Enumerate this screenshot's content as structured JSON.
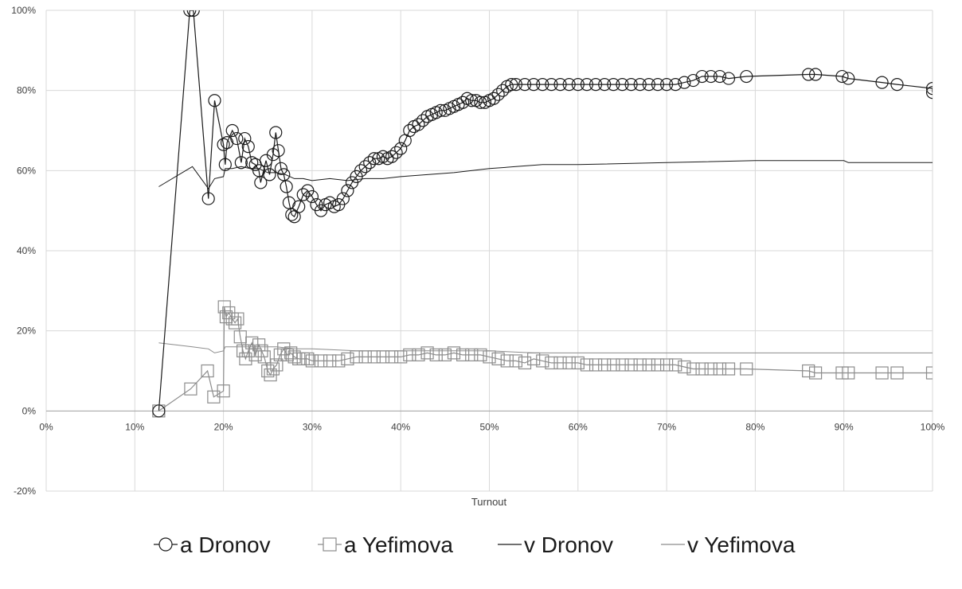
{
  "chart_data": {
    "type": "line",
    "xlabel": "Turnout",
    "ylabel": "",
    "xlim": [
      0,
      100
    ],
    "ylim": [
      -20,
      100
    ],
    "x_ticks": [
      "0%",
      "10%",
      "20%",
      "30%",
      "40%",
      "50%",
      "60%",
      "70%",
      "80%",
      "90%",
      "100%"
    ],
    "y_ticks": [
      "-20%",
      "0%",
      "20%",
      "40%",
      "60%",
      "80%",
      "100%"
    ],
    "grid": true,
    "legend_position": "bottom",
    "colors": {
      "dark": "#1a1a1a",
      "gray": "#8c8c8c",
      "grid": "#d9d9d9"
    },
    "series": [
      {
        "name": "a Dronov",
        "marker": "circle",
        "color": "#1a1a1a",
        "points": [
          [
            12.7,
            0
          ],
          [
            16.2,
            100
          ],
          [
            16.6,
            100
          ],
          [
            18.3,
            53
          ],
          [
            19.0,
            77.5
          ],
          [
            20.0,
            66.5
          ],
          [
            20.2,
            61.5
          ],
          [
            20.4,
            67
          ],
          [
            21.0,
            70
          ],
          [
            21.5,
            68
          ],
          [
            22.0,
            62
          ],
          [
            22.4,
            68
          ],
          [
            22.8,
            66
          ],
          [
            23.2,
            62
          ],
          [
            23.6,
            61.5
          ],
          [
            24.0,
            60
          ],
          [
            24.2,
            57
          ],
          [
            24.8,
            62.5
          ],
          [
            25.2,
            59
          ],
          [
            25.6,
            64
          ],
          [
            25.9,
            69.5
          ],
          [
            26.2,
            65
          ],
          [
            26.5,
            60.5
          ],
          [
            26.8,
            59
          ],
          [
            27.1,
            56
          ],
          [
            27.4,
            52
          ],
          [
            27.7,
            49
          ],
          [
            28.0,
            48.5
          ],
          [
            28.5,
            51
          ],
          [
            29.0,
            54
          ],
          [
            29.5,
            55
          ],
          [
            30.0,
            53.5
          ],
          [
            30.5,
            51.5
          ],
          [
            31.0,
            50
          ],
          [
            31.5,
            51.5
          ],
          [
            32.0,
            52
          ],
          [
            32.5,
            51
          ],
          [
            33.0,
            51.5
          ],
          [
            33.5,
            53
          ],
          [
            34.0,
            55
          ],
          [
            34.5,
            57
          ],
          [
            35.0,
            58.5
          ],
          [
            35.5,
            60
          ],
          [
            36.0,
            61
          ],
          [
            36.5,
            62
          ],
          [
            37.0,
            63
          ],
          [
            37.5,
            63
          ],
          [
            38.0,
            63.5
          ],
          [
            38.5,
            63
          ],
          [
            39.0,
            63.5
          ],
          [
            39.5,
            64.5
          ],
          [
            40.0,
            65.5
          ],
          [
            40.5,
            67.5
          ],
          [
            41.0,
            70
          ],
          [
            41.5,
            71
          ],
          [
            42.0,
            71.5
          ],
          [
            42.5,
            72.5
          ],
          [
            43.0,
            73.5
          ],
          [
            43.5,
            74
          ],
          [
            44.0,
            74.5
          ],
          [
            44.5,
            75
          ],
          [
            45.0,
            75
          ],
          [
            45.5,
            75.5
          ],
          [
            46.0,
            76
          ],
          [
            46.5,
            76.5
          ],
          [
            47.0,
            77
          ],
          [
            47.5,
            78
          ],
          [
            48.0,
            77.5
          ],
          [
            48.5,
            77.5
          ],
          [
            49.0,
            77
          ],
          [
            49.5,
            77
          ],
          [
            50.0,
            77.5
          ],
          [
            50.5,
            78
          ],
          [
            51.0,
            79
          ],
          [
            51.5,
            80
          ],
          [
            52.0,
            81
          ],
          [
            52.5,
            81.5
          ],
          [
            53.0,
            81.5
          ],
          [
            54.0,
            81.5
          ],
          [
            55.0,
            81.5
          ],
          [
            56.0,
            81.5
          ],
          [
            57.0,
            81.5
          ],
          [
            58.0,
            81.5
          ],
          [
            59.0,
            81.5
          ],
          [
            60.0,
            81.5
          ],
          [
            61.0,
            81.5
          ],
          [
            62.0,
            81.5
          ],
          [
            63.0,
            81.5
          ],
          [
            64.0,
            81.5
          ],
          [
            65.0,
            81.5
          ],
          [
            66.0,
            81.5
          ],
          [
            67.0,
            81.5
          ],
          [
            68.0,
            81.5
          ],
          [
            69.0,
            81.5
          ],
          [
            70.0,
            81.5
          ],
          [
            71.0,
            81.5
          ],
          [
            72.0,
            82
          ],
          [
            73.0,
            82.5
          ],
          [
            74.0,
            83.5
          ],
          [
            75.0,
            83.5
          ],
          [
            76.0,
            83.5
          ],
          [
            77.0,
            83
          ],
          [
            79.0,
            83.5
          ],
          [
            86.0,
            84
          ],
          [
            86.8,
            84
          ],
          [
            89.8,
            83.5
          ],
          [
            90.5,
            83
          ],
          [
            94.3,
            82
          ],
          [
            96.0,
            81.5
          ],
          [
            100.0,
            80.5
          ],
          [
            100.0,
            79.5
          ]
        ]
      },
      {
        "name": "a Yefimova",
        "marker": "square",
        "color": "#8c8c8c",
        "points": [
          [
            12.7,
            0
          ],
          [
            16.3,
            5.5
          ],
          [
            18.2,
            10
          ],
          [
            18.9,
            3.5
          ],
          [
            20.0,
            5
          ],
          [
            20.1,
            26
          ],
          [
            20.3,
            23.5
          ],
          [
            20.6,
            24.5
          ],
          [
            21.0,
            23
          ],
          [
            21.3,
            22
          ],
          [
            21.6,
            23
          ],
          [
            21.9,
            18.5
          ],
          [
            22.2,
            15
          ],
          [
            22.5,
            13
          ],
          [
            22.8,
            15
          ],
          [
            23.2,
            17
          ],
          [
            23.6,
            14
          ],
          [
            24.0,
            16.5
          ],
          [
            24.3,
            15
          ],
          [
            24.6,
            13.5
          ],
          [
            25.0,
            10
          ],
          [
            25.3,
            9
          ],
          [
            25.6,
            10.5
          ],
          [
            26.0,
            11.5
          ],
          [
            26.4,
            14
          ],
          [
            26.8,
            15.5
          ],
          [
            27.2,
            14
          ],
          [
            27.6,
            14.5
          ],
          [
            28.0,
            13.5
          ],
          [
            28.5,
            13
          ],
          [
            29.0,
            13
          ],
          [
            29.5,
            13
          ],
          [
            30.0,
            12.5
          ],
          [
            31.0,
            12.5
          ],
          [
            32.0,
            12.5
          ],
          [
            33.0,
            12.5
          ],
          [
            34.0,
            13
          ],
          [
            35.0,
            13.5
          ],
          [
            36.0,
            13.5
          ],
          [
            37.0,
            13.5
          ],
          [
            38.0,
            13.5
          ],
          [
            39.0,
            13.5
          ],
          [
            40.0,
            13.5
          ],
          [
            41.0,
            14
          ],
          [
            42.0,
            14
          ],
          [
            43.0,
            14.5
          ],
          [
            44.0,
            14
          ],
          [
            45.0,
            14
          ],
          [
            46.0,
            14.5
          ],
          [
            47.0,
            14
          ],
          [
            48.0,
            14
          ],
          [
            49.0,
            14
          ],
          [
            50.0,
            13.5
          ],
          [
            51.0,
            13
          ],
          [
            52.0,
            12.5
          ],
          [
            53.0,
            12.5
          ],
          [
            54.0,
            12
          ],
          [
            55.0,
            13
          ],
          [
            56.0,
            12.5
          ],
          [
            57.0,
            12
          ],
          [
            58.0,
            12
          ],
          [
            59.0,
            12
          ],
          [
            60.0,
            12
          ],
          [
            61.0,
            11.5
          ],
          [
            62.0,
            11.5
          ],
          [
            63.0,
            11.5
          ],
          [
            64.0,
            11.5
          ],
          [
            65.0,
            11.5
          ],
          [
            66.0,
            11.5
          ],
          [
            67.0,
            11.5
          ],
          [
            68.0,
            11.5
          ],
          [
            69.0,
            11.5
          ],
          [
            70.0,
            11.5
          ],
          [
            71.0,
            11.5
          ],
          [
            72.0,
            11
          ],
          [
            73.0,
            10.5
          ],
          [
            74.0,
            10.5
          ],
          [
            75.0,
            10.5
          ],
          [
            76.0,
            10.5
          ],
          [
            77.0,
            10.5
          ],
          [
            79.0,
            10.5
          ],
          [
            86.0,
            10
          ],
          [
            86.8,
            9.5
          ],
          [
            89.8,
            9.5
          ],
          [
            90.5,
            9.5
          ],
          [
            94.3,
            9.5
          ],
          [
            96.0,
            9.5
          ],
          [
            100.0,
            9.5
          ]
        ]
      },
      {
        "name": "v Dronov",
        "marker": "none",
        "color": "#1a1a1a",
        "points": [
          [
            12.7,
            56
          ],
          [
            16.5,
            61
          ],
          [
            18.3,
            55.5
          ],
          [
            19.0,
            58
          ],
          [
            20.0,
            58.5
          ],
          [
            20.2,
            60.5
          ],
          [
            21.0,
            60.5
          ],
          [
            22.0,
            61
          ],
          [
            23.0,
            60.5
          ],
          [
            24.0,
            60.5
          ],
          [
            25.0,
            59.5
          ],
          [
            26.0,
            59.5
          ],
          [
            27.0,
            59
          ],
          [
            28.0,
            58
          ],
          [
            29.0,
            58
          ],
          [
            30.0,
            57.5
          ],
          [
            32.0,
            58
          ],
          [
            34.0,
            57.5
          ],
          [
            36.0,
            58
          ],
          [
            38.0,
            58
          ],
          [
            40.0,
            58.5
          ],
          [
            43.0,
            59
          ],
          [
            46.0,
            59.5
          ],
          [
            50.0,
            60.5
          ],
          [
            53.0,
            61
          ],
          [
            56.0,
            61.5
          ],
          [
            60.0,
            61.5
          ],
          [
            70.0,
            62
          ],
          [
            80.0,
            62.5
          ],
          [
            90.0,
            62.5
          ],
          [
            90.5,
            62
          ],
          [
            100.0,
            62
          ]
        ]
      },
      {
        "name": "v Yefimova",
        "marker": "none",
        "color": "#8c8c8c",
        "points": [
          [
            12.7,
            17
          ],
          [
            16.5,
            16
          ],
          [
            18.3,
            15.5
          ],
          [
            19.0,
            14.5
          ],
          [
            20.0,
            15
          ],
          [
            20.2,
            16
          ],
          [
            22.0,
            16
          ],
          [
            24.0,
            16
          ],
          [
            26.0,
            16
          ],
          [
            28.0,
            15.5
          ],
          [
            30.0,
            15.5
          ],
          [
            35.0,
            15
          ],
          [
            40.0,
            15
          ],
          [
            45.0,
            15
          ],
          [
            50.0,
            15
          ],
          [
            55.0,
            14.5
          ],
          [
            60.0,
            14.5
          ],
          [
            70.0,
            14.5
          ],
          [
            80.0,
            14.5
          ],
          [
            90.0,
            14.5
          ],
          [
            100.0,
            14.5
          ]
        ]
      }
    ]
  }
}
